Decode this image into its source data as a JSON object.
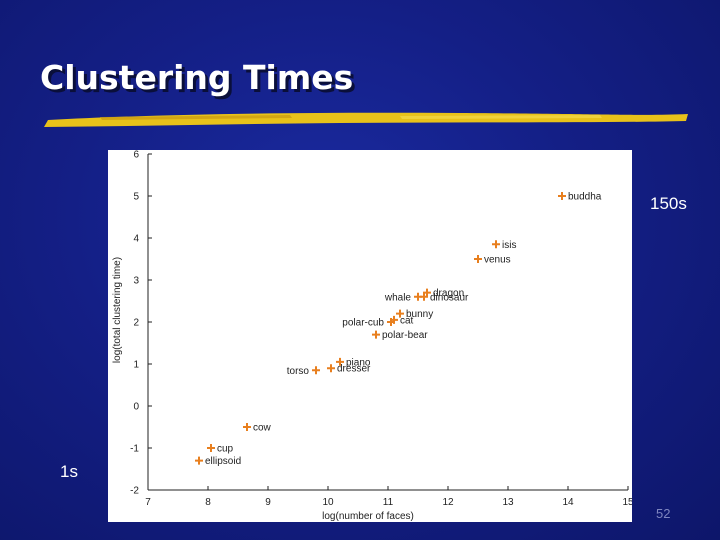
{
  "slide": {
    "title": "Clustering Times",
    "label_top": "150s",
    "label_bottom": "1s",
    "page_number": "52",
    "colors": {
      "background": "#141f86",
      "title": "#ffffff",
      "underline": "#e8c21a",
      "marker": "#e87f1e"
    }
  },
  "chart_data": {
    "type": "scatter",
    "title": "",
    "xlabel": "log(number of faces)",
    "ylabel": "log(total clustering time)",
    "xlim": [
      7,
      15
    ],
    "ylim": [
      -2,
      6
    ],
    "xticks": [
      "7",
      "8",
      "9",
      "10",
      "11",
      "12",
      "13",
      "14",
      "15"
    ],
    "yticks": [
      "-2",
      "-1",
      "0",
      "1",
      "2",
      "3",
      "4",
      "5",
      "6"
    ],
    "grid": false,
    "marker": "plus",
    "points": [
      {
        "label": "buddha",
        "x": 13.9,
        "y": 5.0
      },
      {
        "label": "isis",
        "x": 12.8,
        "y": 3.85
      },
      {
        "label": "venus",
        "x": 12.5,
        "y": 3.5
      },
      {
        "label": "dragon",
        "x": 11.65,
        "y": 2.7
      },
      {
        "label": "dinosaur",
        "x": 11.6,
        "y": 2.6
      },
      {
        "label": "whale",
        "x": 11.5,
        "y": 2.6
      },
      {
        "label": "bunny",
        "x": 11.2,
        "y": 2.2
      },
      {
        "label": "cat",
        "x": 11.1,
        "y": 2.05
      },
      {
        "label": "polar-cub",
        "x": 11.05,
        "y": 2.0
      },
      {
        "label": "polar-bear",
        "x": 10.8,
        "y": 1.7
      },
      {
        "label": "piano",
        "x": 10.2,
        "y": 1.05
      },
      {
        "label": "dresser",
        "x": 10.05,
        "y": 0.9
      },
      {
        "label": "torso",
        "x": 9.8,
        "y": 0.85
      },
      {
        "label": "cow",
        "x": 8.65,
        "y": -0.5
      },
      {
        "label": "cup",
        "x": 8.05,
        "y": -1.0
      },
      {
        "label": "ellipsoid",
        "x": 7.85,
        "y": -1.3
      }
    ]
  }
}
